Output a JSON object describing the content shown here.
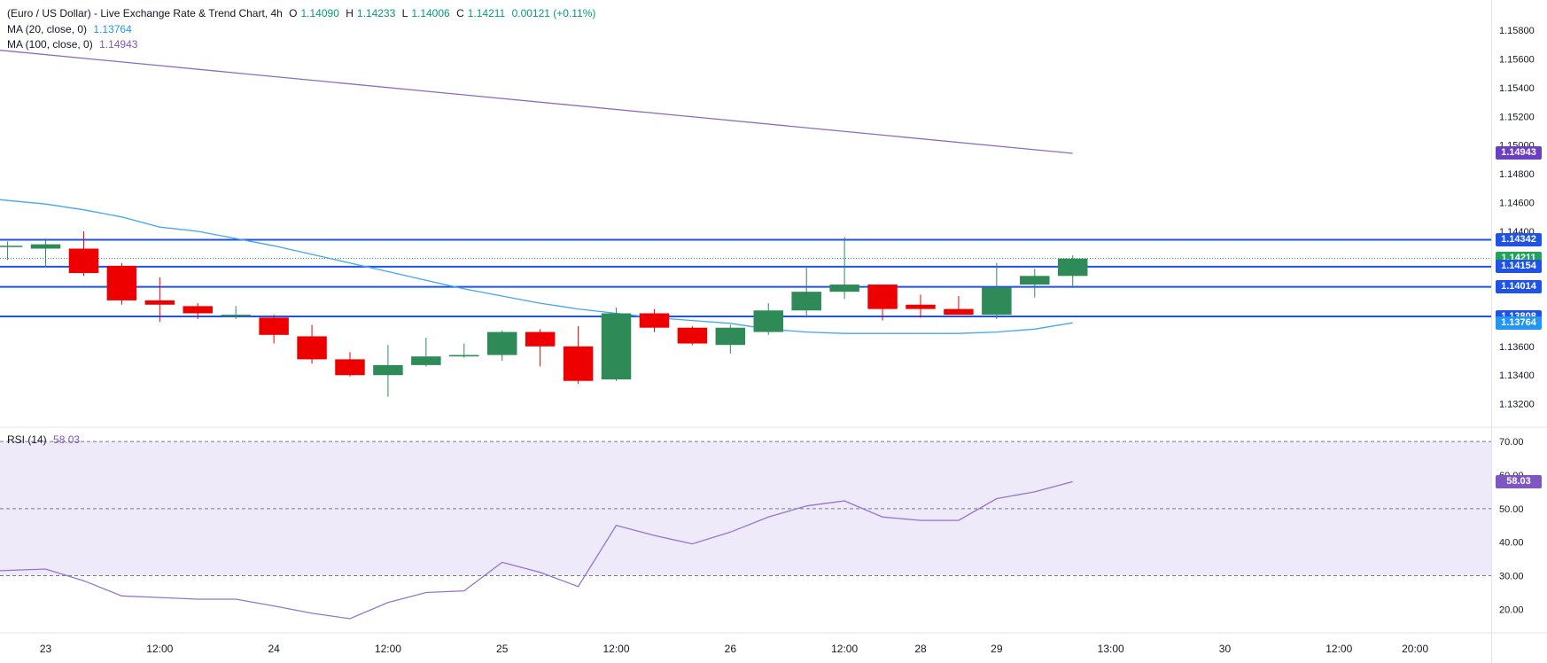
{
  "legend": {
    "title": "(Euro / US Dollar) - Live Exchange Rate & Trend Chart, 4h",
    "o_label": "O",
    "o_value": "1.14090",
    "h_label": "H",
    "h_value": "1.14233",
    "l_label": "L",
    "l_value": "1.14006",
    "c_label": "C",
    "c_value": "1.14211",
    "change": "0.00121 (+0.11%)",
    "ma20_label": "MA (20, close, 0)",
    "ma20_value": "1.13764",
    "ma100_label": "MA (100, close, 0)",
    "ma100_value": "1.14943",
    "rsi_label": "RSI (14)",
    "rsi_value": "58.03"
  },
  "price_tags": [
    {
      "text": "1.14943",
      "value": 1.14943,
      "color": "#6a3fc1"
    },
    {
      "text": "1.14342",
      "value": 1.14342,
      "color": "#1e53e5"
    },
    {
      "text": "1.14211",
      "value": 1.14211,
      "color": "#22a35a"
    },
    {
      "text": "1.14154",
      "value": 1.14154,
      "color": "#1e53e5"
    },
    {
      "text": "1.14014",
      "value": 1.14014,
      "color": "#1e53e5"
    },
    {
      "text": "1.13808",
      "value": 1.13808,
      "color": "#1e53e5"
    },
    {
      "text": "1.13764",
      "value": 1.13764,
      "color": "#2196f3"
    }
  ],
  "rsi_tag": {
    "text": "58.03",
    "value": 58.03,
    "color": "#7e57c2"
  },
  "colors": {
    "up": "#2e8b57",
    "down": "#ee0000",
    "ma20": "#42a5f5",
    "ma100": "#8e6bbf",
    "hline": "#1e53e5",
    "rsi": "#9575cd",
    "rsi_band": "#efeafa",
    "axis_text": "#131722"
  },
  "chart_data": [
    {
      "type": "candlestick",
      "title": "(Euro / US Dollar) - Live Exchange Rate & Trend Chart, 4h",
      "x_ticks": [
        {
          "label": "23",
          "x": 0
        },
        {
          "label": "12:00",
          "x": 3
        },
        {
          "label": "24",
          "x": 6
        },
        {
          "label": "12:00",
          "x": 9
        },
        {
          "label": "25",
          "x": 12
        },
        {
          "label": "12:00",
          "x": 15
        },
        {
          "label": "26",
          "x": 18
        },
        {
          "label": "12:00",
          "x": 21
        },
        {
          "label": "28",
          "x": 23
        },
        {
          "label": "29",
          "x": 25
        },
        {
          "label": "13:00",
          "x": 28
        },
        {
          "label": "30",
          "x": 31
        },
        {
          "label": "12:00",
          "x": 34
        },
        {
          "label": "20:00",
          "x": 36
        }
      ],
      "y_ticks": [
        "1.15800",
        "1.15600",
        "1.15400",
        "1.15200",
        "1.15000",
        "1.14800",
        "1.14600",
        "1.14400",
        "1.14200",
        "1.14000",
        "1.13800",
        "1.13600",
        "1.13400",
        "1.13200"
      ],
      "ylim": [
        1.1305,
        1.1596
      ],
      "xlim": [
        -1.2,
        38
      ],
      "candles": [
        {
          "x": -1,
          "o": 1.143,
          "h": 1.1433,
          "l": 1.142,
          "c": 1.143
        },
        {
          "x": 0,
          "o": 1.1428,
          "h": 1.1435,
          "l": 1.1415,
          "c": 1.1431
        },
        {
          "x": 1,
          "o": 1.1428,
          "h": 1.144,
          "l": 1.1409,
          "c": 1.1411
        },
        {
          "x": 2,
          "o": 1.1416,
          "h": 1.1418,
          "l": 1.1389,
          "c": 1.1392
        },
        {
          "x": 3,
          "o": 1.1392,
          "h": 1.1408,
          "l": 1.1377,
          "c": 1.1389
        },
        {
          "x": 4,
          "o": 1.1388,
          "h": 1.139,
          "l": 1.1379,
          "c": 1.1383
        },
        {
          "x": 5,
          "o": 1.1381,
          "h": 1.1388,
          "l": 1.1379,
          "c": 1.1382
        },
        {
          "x": 6,
          "o": 1.138,
          "h": 1.1382,
          "l": 1.1362,
          "c": 1.1368
        },
        {
          "x": 7,
          "o": 1.1367,
          "h": 1.1375,
          "l": 1.1348,
          "c": 1.1351
        },
        {
          "x": 8,
          "o": 1.1351,
          "h": 1.1356,
          "l": 1.1339,
          "c": 1.134
        },
        {
          "x": 9,
          "o": 1.134,
          "h": 1.1361,
          "l": 1.1325,
          "c": 1.1347
        },
        {
          "x": 10,
          "o": 1.1347,
          "h": 1.1366,
          "l": 1.1346,
          "c": 1.1353
        },
        {
          "x": 11,
          "o": 1.1353,
          "h": 1.1362,
          "l": 1.1352,
          "c": 1.1354
        },
        {
          "x": 12,
          "o": 1.1354,
          "h": 1.1371,
          "l": 1.135,
          "c": 1.137
        },
        {
          "x": 13,
          "o": 1.137,
          "h": 1.1372,
          "l": 1.1346,
          "c": 1.136
        },
        {
          "x": 14,
          "o": 1.136,
          "h": 1.1374,
          "l": 1.1334,
          "c": 1.1336
        },
        {
          "x": 15,
          "o": 1.1337,
          "h": 1.1387,
          "l": 1.1336,
          "c": 1.1383
        },
        {
          "x": 16,
          "o": 1.1383,
          "h": 1.1386,
          "l": 1.137,
          "c": 1.1373
        },
        {
          "x": 17,
          "o": 1.1373,
          "h": 1.1374,
          "l": 1.1361,
          "c": 1.1362
        },
        {
          "x": 18,
          "o": 1.1361,
          "h": 1.1375,
          "l": 1.1355,
          "c": 1.1373
        },
        {
          "x": 19,
          "o": 1.137,
          "h": 1.139,
          "l": 1.1368,
          "c": 1.1385
        },
        {
          "x": 20,
          "o": 1.1385,
          "h": 1.1416,
          "l": 1.138,
          "c": 1.1398
        },
        {
          "x": 21,
          "o": 1.1398,
          "h": 1.1436,
          "l": 1.1393,
          "c": 1.1403
        },
        {
          "x": 22,
          "o": 1.1403,
          "h": 1.1402,
          "l": 1.1378,
          "c": 1.1386
        },
        {
          "x": 23,
          "o": 1.1389,
          "h": 1.1396,
          "l": 1.138,
          "c": 1.1386
        },
        {
          "x": 24,
          "o": 1.1386,
          "h": 1.1395,
          "l": 1.1384,
          "c": 1.1382
        },
        {
          "x": 25,
          "o": 1.1382,
          "h": 1.1418,
          "l": 1.1379,
          "c": 1.1401
        },
        {
          "x": 26,
          "o": 1.1403,
          "h": 1.1414,
          "l": 1.1394,
          "c": 1.1409
        },
        {
          "x": 27,
          "o": 1.1409,
          "h": 1.14233,
          "l": 1.14006,
          "c": 1.14211
        }
      ],
      "ma20": {
        "name": "MA (20, close, 0)",
        "x": [
          -1.2,
          0,
          1,
          2,
          3,
          4,
          5,
          6,
          7,
          8,
          9,
          10,
          11,
          12,
          13,
          14,
          15,
          16,
          17,
          18,
          19,
          20,
          21,
          22,
          23,
          24,
          25,
          26,
          27
        ],
        "y": [
          1.1462,
          1.1459,
          1.1455,
          1.145,
          1.1443,
          1.144,
          1.1435,
          1.143,
          1.1424,
          1.1418,
          1.1412,
          1.1406,
          1.14,
          1.1395,
          1.139,
          1.1386,
          1.1383,
          1.138,
          1.1378,
          1.1376,
          1.1372,
          1.137,
          1.1369,
          1.1369,
          1.1369,
          1.1369,
          1.137,
          1.1372,
          1.13764
        ]
      },
      "ma100": {
        "name": "MA (100, close, 0)",
        "x": [
          -1.2,
          27
        ],
        "y": [
          1.1566,
          1.14943
        ]
      },
      "hlines": [
        1.14342,
        1.14154,
        1.14014,
        1.13808
      ],
      "last_price": 1.14211
    },
    {
      "type": "line",
      "title": "RSI (14)",
      "y_ticks": [
        "70.00",
        "60.00",
        "50.00",
        "40.00",
        "30.00",
        "20.00"
      ],
      "ylim": [
        13.5,
        74
      ],
      "band": [
        30,
        70
      ],
      "dashed_levels": [
        70,
        50,
        30
      ],
      "x": [
        -1.2,
        0,
        1,
        2,
        3,
        4,
        5,
        6,
        7,
        8,
        9,
        10,
        11,
        12,
        13,
        14,
        15,
        16,
        17,
        18,
        19,
        20,
        21,
        22,
        23,
        24,
        25,
        26,
        27
      ],
      "y": [
        31.5,
        32.0,
        28.5,
        24.0,
        23.5,
        23.0,
        23.0,
        21.0,
        18.8,
        17.2,
        22.0,
        25.0,
        25.5,
        34.0,
        31.0,
        26.8,
        45.0,
        42.0,
        39.5,
        43.0,
        47.5,
        50.8,
        52.3,
        47.5,
        46.5,
        46.5,
        53.0,
        55.0,
        58.03
      ]
    }
  ]
}
